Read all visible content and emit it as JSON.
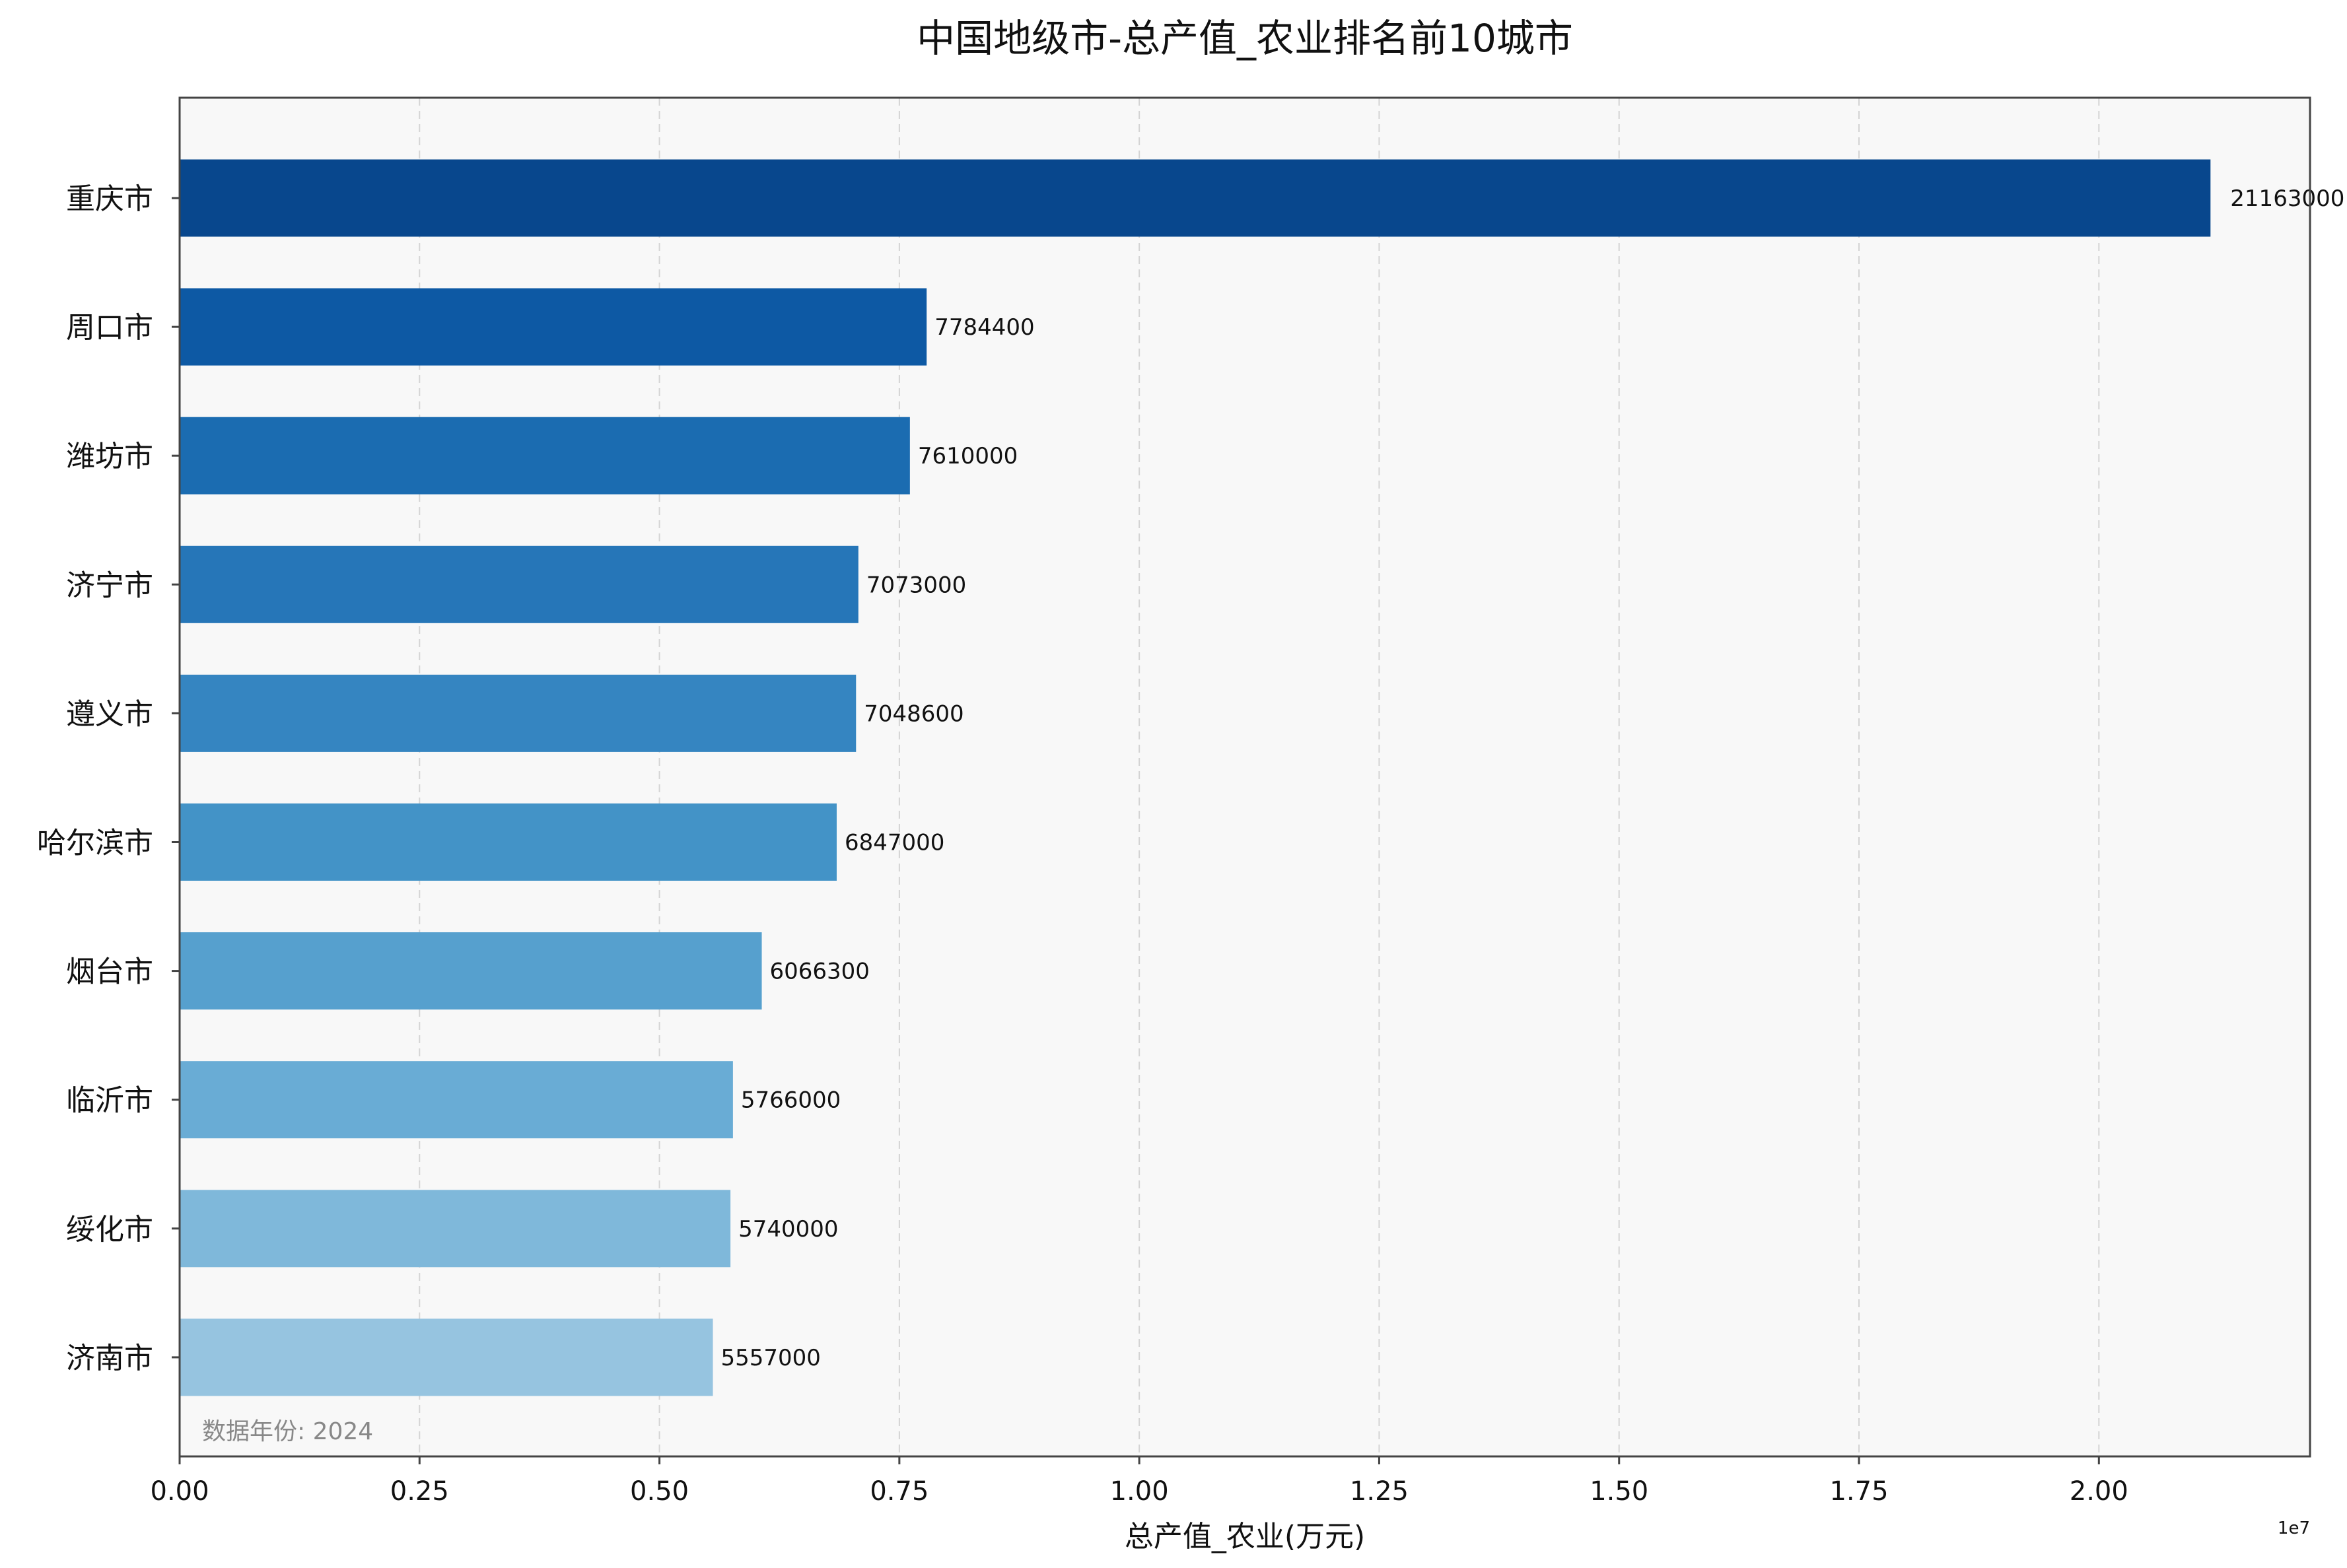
{
  "chart_data": {
    "type": "bar",
    "orientation": "horizontal",
    "title": "中国地级市-总产值_农业排名前10城市",
    "xlabel": "总产值_农业(万元)",
    "ylabel": "",
    "categories": [
      "重庆市",
      "周口市",
      "潍坊市",
      "济宁市",
      "遵义市",
      "哈尔滨市",
      "烟台市",
      "临沂市",
      "绥化市",
      "济南市"
    ],
    "values": [
      21163000,
      7784400,
      7610000,
      7073000,
      7048600,
      6847000,
      6066300,
      5766000,
      5740000,
      5557000
    ],
    "value_labels": [
      "21163000",
      "7784400",
      "7610000",
      "7073000",
      "7048600",
      "6847000",
      "6066300",
      "5766000",
      "5740000",
      "5557000"
    ],
    "xlim": [
      0,
      22200000
    ],
    "xticks": [
      0,
      2500000,
      5000000,
      7500000,
      10000000,
      12500000,
      15000000,
      17500000,
      20000000
    ],
    "xtick_labels": [
      "0.00",
      "0.25",
      "0.50",
      "0.75",
      "1.00",
      "1.25",
      "1.50",
      "1.75",
      "2.00"
    ],
    "offset_label": "1e7",
    "annotation": "数据年份: 2024",
    "grid": true,
    "colors": [
      "#08478d",
      "#0d59a4",
      "#1b6cb1",
      "#2676b8",
      "#3585c1",
      "#4393c7",
      "#56a0ce",
      "#69acd5",
      "#7fb8da",
      "#96c4e0"
    ],
    "background": "#f8f8f8"
  }
}
